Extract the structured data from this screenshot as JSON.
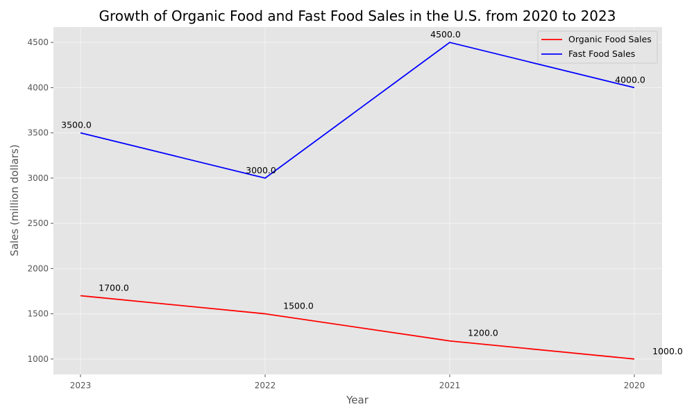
{
  "chart_data": {
    "type": "line",
    "title": "Growth of Organic Food and Fast Food Sales in the U.S. from 2020 to 2023",
    "xlabel": "Year",
    "ylabel": "Sales (million dollars)",
    "categories": [
      "2023",
      "2022",
      "2021",
      "2020"
    ],
    "ylim": [
      830,
      4670
    ],
    "yticks": [
      1000,
      1500,
      2000,
      2500,
      3000,
      3500,
      4000,
      4500
    ],
    "grid": true,
    "legend_position": "top-right",
    "series": [
      {
        "name": "Organic Food Sales",
        "color": "#ff0000",
        "values": [
          1700,
          1500,
          1200,
          1000
        ],
        "labels": [
          "1700.0",
          "1500.0",
          "1200.0",
          "1000.0"
        ]
      },
      {
        "name": "Fast Food Sales",
        "color": "#0000ff",
        "values": [
          3500,
          3000,
          4500,
          4000
        ],
        "labels": [
          "3500.0",
          "3000.0",
          "4500.0",
          "4000.0"
        ]
      }
    ]
  }
}
